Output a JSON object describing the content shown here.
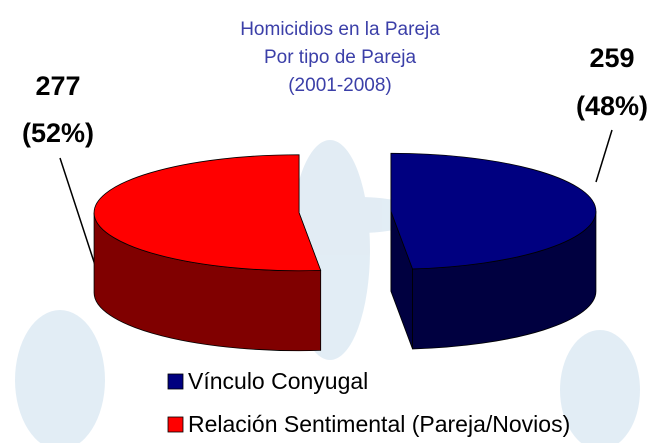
{
  "chart_data": {
    "type": "pie3d",
    "title_lines": [
      "Homicidios en la Pareja",
      "Por tipo de Pareja",
      "(2001-2008)"
    ],
    "categories": [
      "Vínculo Conyugal",
      "Relación Sentimental (Pareja/Novios)"
    ],
    "values": [
      259,
      277
    ],
    "percents": [
      48,
      52
    ],
    "percent_labels": [
      "(48%)",
      "(52%)"
    ],
    "colors": [
      "#000080",
      "#ff0000"
    ],
    "side_colors": [
      "#000040",
      "#800000"
    ]
  }
}
